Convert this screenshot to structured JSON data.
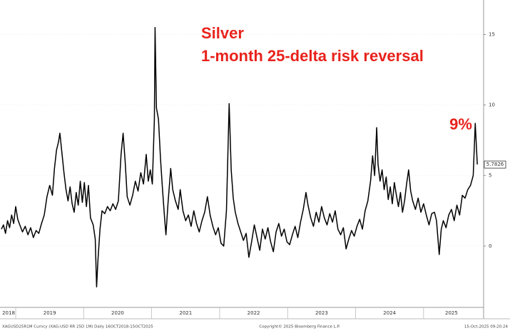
{
  "chart_data": {
    "type": "line",
    "title": "Silver",
    "subtitle": "1-month 25-delta risk reversal",
    "annotations": [
      {
        "text": "9%"
      }
    ],
    "color": "#000000",
    "annotation_color": "#e8221c",
    "grid": true,
    "xlim": [
      2018.79,
      2025.82
    ],
    "xticks": [
      2018,
      2019,
      2020,
      2021,
      2022,
      2023,
      2024,
      2025
    ],
    "ylim": [
      -4.35,
      17.45
    ],
    "yticks": [
      0,
      5,
      10,
      15
    ],
    "x": [
      2018.79,
      2018.82,
      2018.85,
      2018.88,
      2018.91,
      2018.94,
      2018.97,
      2019.0,
      2019.03,
      2019.06,
      2019.1,
      2019.14,
      2019.18,
      2019.22,
      2019.26,
      2019.3,
      2019.34,
      2019.38,
      2019.42,
      2019.46,
      2019.5,
      2019.54,
      2019.57,
      2019.6,
      2019.63,
      2019.65,
      2019.68,
      2019.71,
      2019.74,
      2019.77,
      2019.8,
      2019.83,
      2019.86,
      2019.89,
      2019.92,
      2019.95,
      2019.98,
      2020.01,
      2020.04,
      2020.07,
      2020.1,
      2020.14,
      2020.17,
      2020.19,
      2020.21,
      2020.24,
      2020.27,
      2020.31,
      2020.35,
      2020.39,
      2020.43,
      2020.47,
      2020.51,
      2020.55,
      2020.58,
      2020.61,
      2020.64,
      2020.68,
      2020.72,
      2020.76,
      2020.8,
      2020.84,
      2020.88,
      2020.92,
      2020.95,
      2020.98,
      2021.01,
      2021.04,
      2021.05,
      2021.07,
      2021.1,
      2021.13,
      2021.16,
      2021.19,
      2021.21,
      2021.24,
      2021.28,
      2021.31,
      2021.35,
      2021.39,
      2021.42,
      2021.46,
      2021.5,
      2021.54,
      2021.58,
      2021.62,
      2021.66,
      2021.7,
      2021.74,
      2021.78,
      2021.82,
      2021.86,
      2021.9,
      2021.94,
      2021.98,
      2022.02,
      2022.06,
      2022.1,
      2022.14,
      2022.17,
      2022.2,
      2022.23,
      2022.27,
      2022.31,
      2022.35,
      2022.39,
      2022.43,
      2022.47,
      2022.51,
      2022.55,
      2022.59,
      2022.63,
      2022.67,
      2022.71,
      2022.75,
      2022.79,
      2022.83,
      2022.87,
      2022.91,
      2022.95,
      2022.99,
      2023.03,
      2023.07,
      2023.11,
      2023.15,
      2023.19,
      2023.23,
      2023.27,
      2023.3,
      2023.34,
      2023.38,
      2023.42,
      2023.46,
      2023.5,
      2023.54,
      2023.58,
      2023.62,
      2023.66,
      2023.7,
      2023.74,
      2023.78,
      2023.82,
      2023.86,
      2023.9,
      2023.94,
      2023.98,
      2024.02,
      2024.06,
      2024.1,
      2024.14,
      2024.18,
      2024.22,
      2024.25,
      2024.28,
      2024.31,
      2024.33,
      2024.36,
      2024.39,
      2024.42,
      2024.45,
      2024.48,
      2024.51,
      2024.54,
      2024.57,
      2024.6,
      2024.63,
      2024.66,
      2024.69,
      2024.72,
      2024.75,
      2024.78,
      2024.81,
      2024.84,
      2024.88,
      2024.92,
      2024.96,
      2025.0,
      2025.04,
      2025.08,
      2025.12,
      2025.16,
      2025.19,
      2025.23,
      2025.26,
      2025.29,
      2025.33,
      2025.37,
      2025.41,
      2025.45,
      2025.49,
      2025.53,
      2025.57,
      2025.61,
      2025.65,
      2025.69,
      2025.73,
      2025.76,
      2025.79
    ],
    "values": [
      1.2,
      1.5,
      0.9,
      1.8,
      1.3,
      2.2,
      1.6,
      2.8,
      1.9,
      1.5,
      1.0,
      1.4,
      0.8,
      1.3,
      0.6,
      1.1,
      0.9,
      1.6,
      2.2,
      3.5,
      4.3,
      3.6,
      5.5,
      6.8,
      7.4,
      8.0,
      6.6,
      5.2,
      4.0,
      3.2,
      4.2,
      3.0,
      2.4,
      3.8,
      2.9,
      4.6,
      3.1,
      4.5,
      2.8,
      4.3,
      2.0,
      1.5,
      0.5,
      -2.9,
      -1.0,
      1.2,
      2.5,
      2.3,
      2.8,
      2.5,
      3.0,
      2.6,
      3.2,
      6.5,
      8.0,
      6.0,
      3.5,
      2.9,
      3.6,
      4.6,
      3.9,
      5.2,
      4.4,
      6.5,
      4.6,
      5.4,
      4.4,
      9.0,
      15.5,
      9.8,
      9.0,
      6.2,
      4.0,
      2.0,
      0.8,
      3.0,
      5.5,
      4.0,
      3.2,
      2.6,
      4.0,
      2.5,
      1.8,
      2.2,
      1.4,
      2.5,
      1.6,
      1.0,
      1.8,
      2.4,
      3.5,
      2.2,
      1.4,
      0.8,
      1.3,
      0.2,
      0.0,
      2.5,
      10.1,
      5.4,
      3.4,
      2.4,
      1.6,
      1.0,
      0.4,
      0.9,
      -0.8,
      0.3,
      1.5,
      0.6,
      -0.3,
      1.2,
      0.5,
      1.3,
      0.3,
      -0.4,
      1.0,
      1.6,
      0.7,
      1.2,
      0.3,
      0.1,
      0.8,
      1.4,
      0.6,
      1.7,
      2.6,
      3.8,
      2.9,
      2.0,
      1.4,
      2.4,
      1.7,
      2.8,
      2.0,
      1.5,
      2.3,
      1.7,
      2.5,
      1.2,
      0.8,
      1.3,
      -0.2,
      0.5,
      1.1,
      0.7,
      1.4,
      1.9,
      1.2,
      2.5,
      3.2,
      4.6,
      6.4,
      5.0,
      8.4,
      5.8,
      4.6,
      5.4,
      4.0,
      4.9,
      3.3,
      4.2,
      3.0,
      4.5,
      3.6,
      2.8,
      3.8,
      2.4,
      3.2,
      4.4,
      5.4,
      3.9,
      3.2,
      2.6,
      3.4,
      2.4,
      3.0,
      2.2,
      1.5,
      2.3,
      2.4,
      1.8,
      -0.6,
      1.2,
      1.8,
      1.3,
      2.2,
      2.6,
      1.8,
      2.9,
      2.2,
      3.6,
      3.4,
      4.0,
      4.3,
      5.0,
      8.7,
      5.7826
    ]
  },
  "footer": {
    "left": "XAGUSD25R1M Curncy (XAG-USD RR 25D 1M) Daily 16OCT2018-15OCT2025",
    "center": "Copyright© 2025 Bloomberg Finance L.P.",
    "right": "15-Oct-2025 09:20:24"
  }
}
